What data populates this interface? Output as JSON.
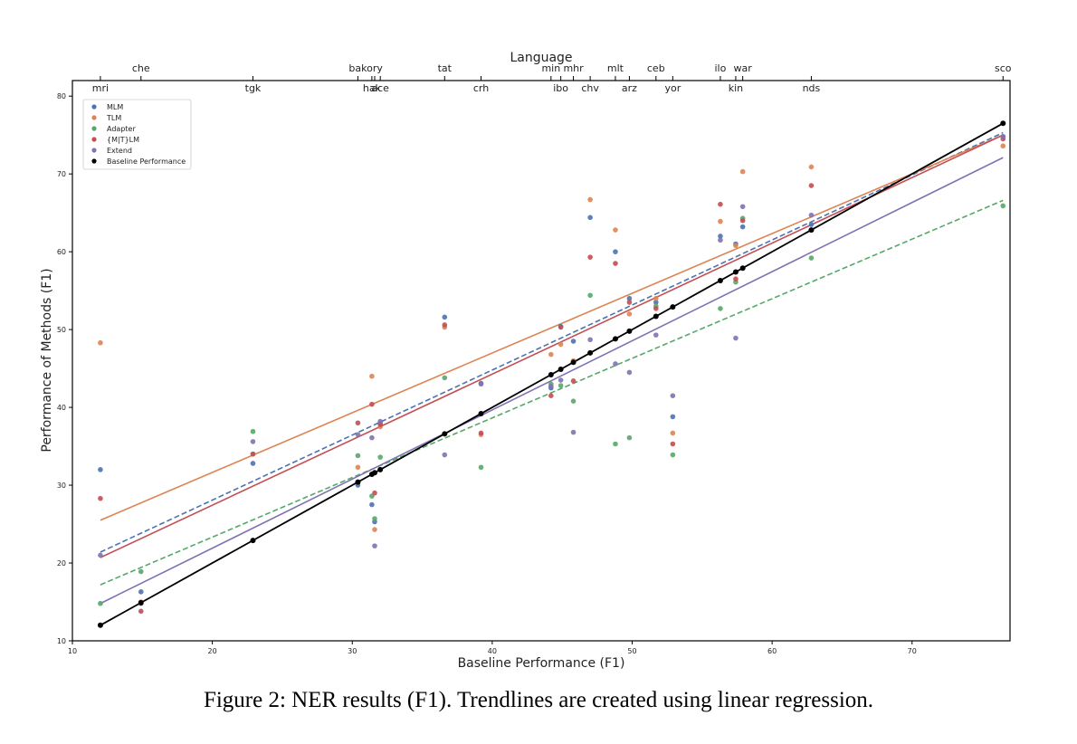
{
  "caption": "Figure 2: NER results (F1). Trendlines are created using linear regression.",
  "colors": {
    "MLM": "#4c72b0",
    "TLM": "#dd8452",
    "Adapter": "#55a868",
    "{M|T}LM": "#c44e52",
    "Extend": "#8172b3",
    "Baseline Performance": "#000000"
  },
  "chart_data": {
    "type": "scatter",
    "xlabel": "Baseline Performance (F1)",
    "ylabel": "Performance of Methods (F1)",
    "top_axis_label": "Language",
    "xlim": [
      10,
      77
    ],
    "ylim": [
      10,
      82
    ],
    "x_ticks": [
      10,
      20,
      30,
      40,
      50,
      60,
      70
    ],
    "y_ticks": [
      10,
      20,
      30,
      40,
      50,
      60,
      70,
      80
    ],
    "grid": false,
    "legend_position": "top-left",
    "languages": [
      {
        "name": "mri",
        "baseline": 12.0,
        "row": "lower"
      },
      {
        "name": "che",
        "baseline": 14.9,
        "row": "upper"
      },
      {
        "name": "tgk",
        "baseline": 22.9,
        "row": "lower"
      },
      {
        "name": "bak",
        "baseline": 30.4,
        "row": "upper"
      },
      {
        "name": "hak",
        "baseline": 31.4,
        "row": "lower"
      },
      {
        "name": "ory",
        "baseline": 31.6,
        "row": "upper"
      },
      {
        "name": "ace",
        "baseline": 32.0,
        "row": "lower"
      },
      {
        "name": "tat",
        "baseline": 36.6,
        "row": "upper"
      },
      {
        "name": "crh",
        "baseline": 39.2,
        "row": "lower"
      },
      {
        "name": "min",
        "baseline": 44.2,
        "row": "upper"
      },
      {
        "name": "ibo",
        "baseline": 44.9,
        "row": "lower"
      },
      {
        "name": "mhr",
        "baseline": 45.8,
        "row": "upper"
      },
      {
        "name": "chv",
        "baseline": 47.0,
        "row": "lower"
      },
      {
        "name": "mlt",
        "baseline": 48.8,
        "row": "upper"
      },
      {
        "name": "arz",
        "baseline": 49.8,
        "row": "lower"
      },
      {
        "name": "ceb",
        "baseline": 51.7,
        "row": "upper"
      },
      {
        "name": "yor",
        "baseline": 52.9,
        "row": "lower"
      },
      {
        "name": "ilo",
        "baseline": 56.3,
        "row": "upper"
      },
      {
        "name": "kin",
        "baseline": 57.4,
        "row": "lower"
      },
      {
        "name": "war",
        "baseline": 57.9,
        "row": "upper"
      },
      {
        "name": "nds",
        "baseline": 62.8,
        "row": "lower"
      },
      {
        "name": "sco",
        "baseline": 76.5,
        "row": "upper"
      }
    ],
    "series": [
      {
        "name": "MLM",
        "x": [
          12.0,
          14.9,
          22.9,
          30.4,
          31.4,
          31.6,
          32.0,
          36.6,
          39.2,
          44.2,
          44.9,
          45.8,
          47.0,
          48.8,
          49.8,
          51.7,
          52.9,
          56.3,
          57.4,
          57.9,
          62.8,
          76.5
        ],
        "y": [
          32.0,
          16.3,
          32.8,
          30.0,
          27.5,
          25.3,
          38.0,
          51.6,
          43.1,
          42.5,
          50.4,
          48.5,
          64.4,
          60.0,
          54.0,
          53.5,
          38.8,
          62.0,
          61.0,
          63.2,
          63.5,
          74.8
        ],
        "trendline": [
          [
            12.0,
            21.4
          ],
          [
            76.5,
            75.3
          ]
        ],
        "trend_style": "dashed"
      },
      {
        "name": "TLM",
        "x": [
          12.0,
          14.9,
          22.9,
          30.4,
          31.4,
          31.6,
          32.0,
          36.6,
          39.2,
          44.2,
          44.9,
          45.8,
          47.0,
          48.8,
          49.8,
          51.7,
          52.9,
          56.3,
          57.4,
          57.9,
          62.8,
          76.5
        ],
        "y": [
          48.3,
          15.0,
          34.0,
          32.3,
          44.0,
          24.3,
          37.5,
          50.3,
          36.5,
          46.8,
          48.1,
          46.0,
          66.7,
          62.8,
          52.0,
          54.0,
          36.7,
          63.9,
          60.8,
          70.3,
          70.9,
          73.6
        ],
        "trendline": [
          [
            12.0,
            25.5
          ],
          [
            76.5,
            75.0
          ]
        ],
        "trend_style": "solid"
      },
      {
        "name": "Adapter",
        "x": [
          12.0,
          14.9,
          22.9,
          30.4,
          31.4,
          31.6,
          32.0,
          36.6,
          39.2,
          44.2,
          44.9,
          45.8,
          47.0,
          48.8,
          49.8,
          51.7,
          52.9,
          56.3,
          57.4,
          57.9,
          62.8,
          76.5
        ],
        "y": [
          14.8,
          18.9,
          36.9,
          33.8,
          28.6,
          25.7,
          33.6,
          43.8,
          32.3,
          43.0,
          42.8,
          40.8,
          54.4,
          35.3,
          36.1,
          53.0,
          33.9,
          52.7,
          56.1,
          64.3,
          59.2,
          65.9
        ],
        "trendline": [
          [
            12.0,
            17.2
          ],
          [
            76.5,
            66.6
          ]
        ],
        "trend_style": "dashed"
      },
      {
        "name": "{M|T}LM",
        "x": [
          12.0,
          14.9,
          22.9,
          30.4,
          31.4,
          31.6,
          32.0,
          36.6,
          39.2,
          44.2,
          44.9,
          45.8,
          47.0,
          48.8,
          49.8,
          51.7,
          52.9,
          56.3,
          57.4,
          57.9,
          62.8,
          76.5
        ],
        "y": [
          28.3,
          13.8,
          34.0,
          38.0,
          40.4,
          29.0,
          37.8,
          50.6,
          36.7,
          41.5,
          50.3,
          43.4,
          59.3,
          58.5,
          53.5,
          52.7,
          35.3,
          66.1,
          56.5,
          64.0,
          68.5,
          74.5
        ],
        "trendline": [
          [
            12.0,
            20.7
          ],
          [
            76.5,
            75.0
          ]
        ],
        "trend_style": "solid"
      },
      {
        "name": "Extend",
        "x": [
          12.0,
          14.9,
          22.9,
          30.4,
          31.4,
          31.6,
          32.0,
          36.6,
          39.2,
          44.2,
          44.9,
          45.8,
          47.0,
          48.8,
          49.8,
          51.7,
          52.9,
          56.3,
          57.4,
          57.9,
          62.8,
          76.5
        ],
        "y": [
          21.0,
          14.8,
          35.6,
          36.5,
          36.1,
          22.2,
          38.2,
          33.9,
          43.0,
          42.7,
          43.5,
          36.8,
          48.7,
          45.6,
          44.5,
          49.3,
          41.5,
          61.5,
          48.9,
          65.8,
          64.7,
          74.8
        ],
        "trendline": [
          [
            12.0,
            14.8
          ],
          [
            76.5,
            72.1
          ]
        ],
        "trend_style": "solid"
      },
      {
        "name": "Baseline Performance",
        "x": [
          12.0,
          14.9,
          22.9,
          30.4,
          31.4,
          31.6,
          32.0,
          36.6,
          39.2,
          44.2,
          44.9,
          45.8,
          47.0,
          48.8,
          49.8,
          51.7,
          52.9,
          56.3,
          57.4,
          57.9,
          62.8,
          76.5
        ],
        "y": [
          12.0,
          14.9,
          22.9,
          30.4,
          31.4,
          31.6,
          32.0,
          36.6,
          39.2,
          44.2,
          44.9,
          45.8,
          47.0,
          48.8,
          49.8,
          51.7,
          52.9,
          56.3,
          57.4,
          57.9,
          62.8,
          76.5
        ],
        "trendline": [
          [
            12.0,
            12.0
          ],
          [
            76.5,
            76.5
          ]
        ],
        "trend_style": "solid"
      }
    ]
  }
}
